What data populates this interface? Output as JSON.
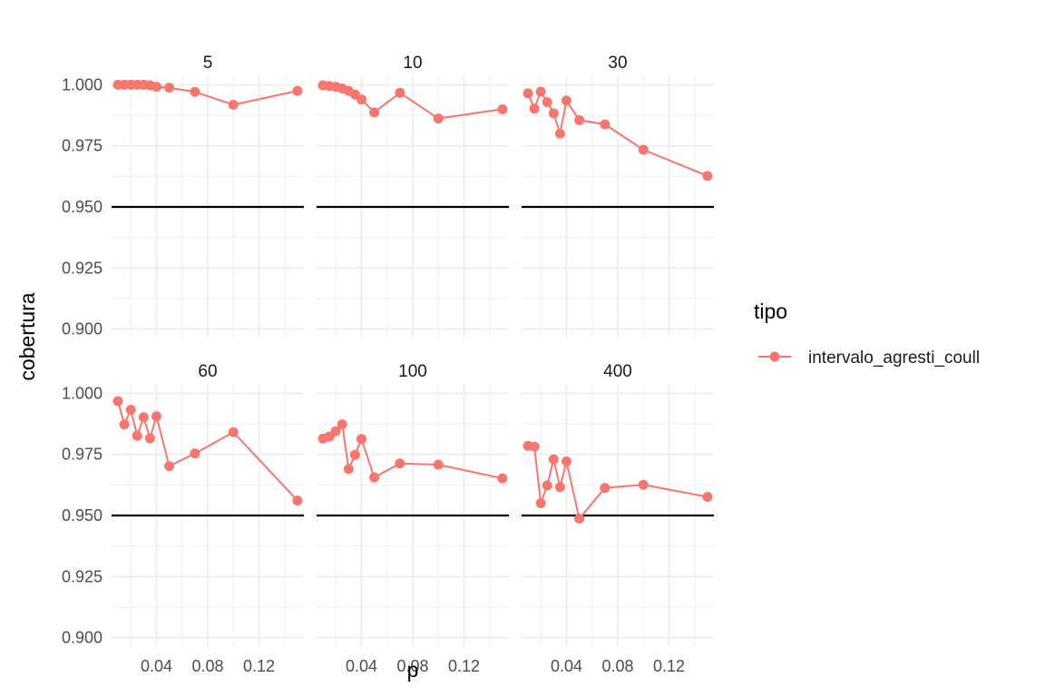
{
  "chart_data": {
    "type": "line",
    "xlabel": "p",
    "ylabel": "cobertura",
    "xlim": [
      0.005,
      0.155
    ],
    "ylim": [
      0.8965,
      1.0035
    ],
    "x_ticks": [
      0.04,
      0.08,
      0.12
    ],
    "x_tick_labels": [
      "0.04",
      "0.08",
      "0.12"
    ],
    "y_ticks": [
      0.9,
      0.925,
      0.95,
      0.975,
      1.0
    ],
    "y_tick_labels": [
      "0.900",
      "0.925",
      "0.950",
      "0.975",
      "1.000"
    ],
    "reference_line": 0.95,
    "grid": true,
    "legend": {
      "title": "tipo",
      "position": "right",
      "entries": [
        {
          "name": "intervalo_agresti_coull",
          "color": "#F8766D"
        }
      ]
    },
    "series_color": "#F8766D",
    "x": [
      0.01,
      0.015,
      0.02,
      0.025,
      0.03,
      0.035,
      0.04,
      0.05,
      0.07,
      0.1,
      0.15
    ],
    "panels": [
      {
        "label": "5",
        "values": [
          1.0,
          1.0,
          1.0,
          1.0,
          1.0,
          0.9998,
          0.9992,
          0.9988,
          0.9971,
          0.9918,
          0.9975
        ]
      },
      {
        "label": "10",
        "values": [
          0.9998,
          0.9995,
          0.9992,
          0.9985,
          0.9975,
          0.996,
          0.994,
          0.9887,
          0.9967,
          0.9862,
          0.99
        ]
      },
      {
        "label": "30",
        "values": [
          0.9965,
          0.9902,
          0.9972,
          0.9929,
          0.9883,
          0.98,
          0.9935,
          0.9855,
          0.9838,
          0.9734,
          0.9627
        ]
      },
      {
        "label": "60",
        "values": [
          0.9968,
          0.9873,
          0.9933,
          0.9826,
          0.9902,
          0.9816,
          0.9906,
          0.9702,
          0.9754,
          0.9841,
          0.9561
        ]
      },
      {
        "label": "100",
        "values": [
          0.9815,
          0.9823,
          0.9845,
          0.9873,
          0.969,
          0.9748,
          0.9813,
          0.9656,
          0.9713,
          0.9708,
          0.9652
        ]
      },
      {
        "label": "400",
        "values": [
          0.9785,
          0.9782,
          0.955,
          0.9623,
          0.973,
          0.9616,
          0.9721,
          0.9487,
          0.9613,
          0.9626,
          0.9576
        ]
      }
    ]
  }
}
